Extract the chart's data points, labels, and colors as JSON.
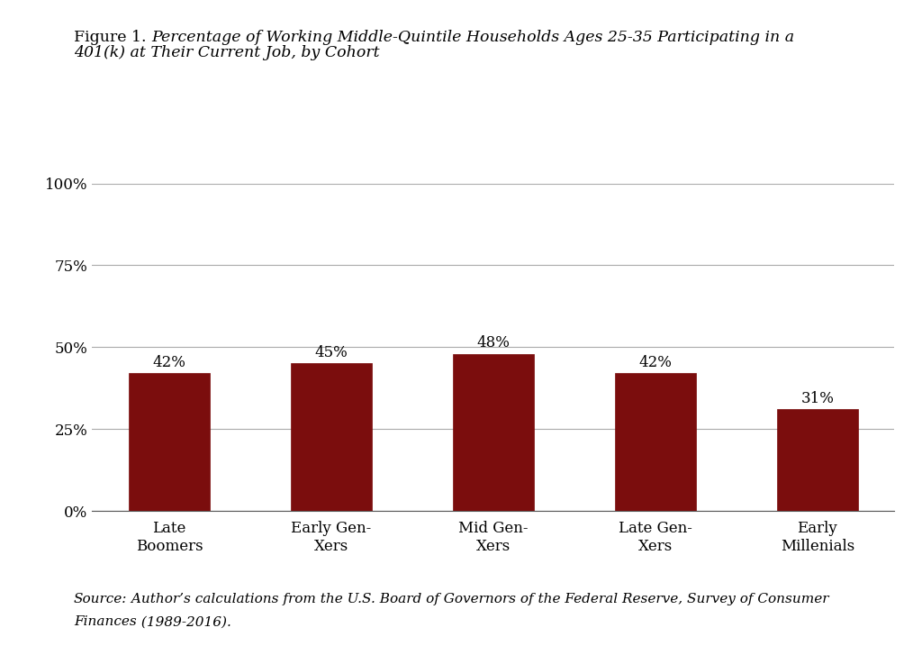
{
  "categories": [
    "Late\nBoomers",
    "Early Gen-\nXers",
    "Mid Gen-\nXers",
    "Late Gen-\nXers",
    "Early\nMillenials"
  ],
  "values": [
    42,
    45,
    48,
    42,
    31
  ],
  "bar_color": "#7B0D0D",
  "bar_edge_color": "#7B0D0D",
  "ylim": [
    0,
    100
  ],
  "yticks": [
    0,
    25,
    50,
    75,
    100
  ],
  "ytick_labels": [
    "0%",
    "25%",
    "50%",
    "75%",
    "100%"
  ],
  "value_labels": [
    "42%",
    "45%",
    "48%",
    "42%",
    "31%"
  ],
  "title_plain": "Figure 1. ",
  "title_line1_italic": "Percentage of Working Middle-Quintile Households Ages 25-35 Participating in a",
  "title_line2_italic": "401(k) at Their Current Job, by Cohort",
  "background_color": "#ffffff",
  "grid_color": "#aaaaaa",
  "font_family": "DejaVu Serif",
  "title_fontsize": 12.5,
  "tick_fontsize": 12,
  "value_fontsize": 12,
  "source_fontsize": 11,
  "bar_width": 0.5
}
